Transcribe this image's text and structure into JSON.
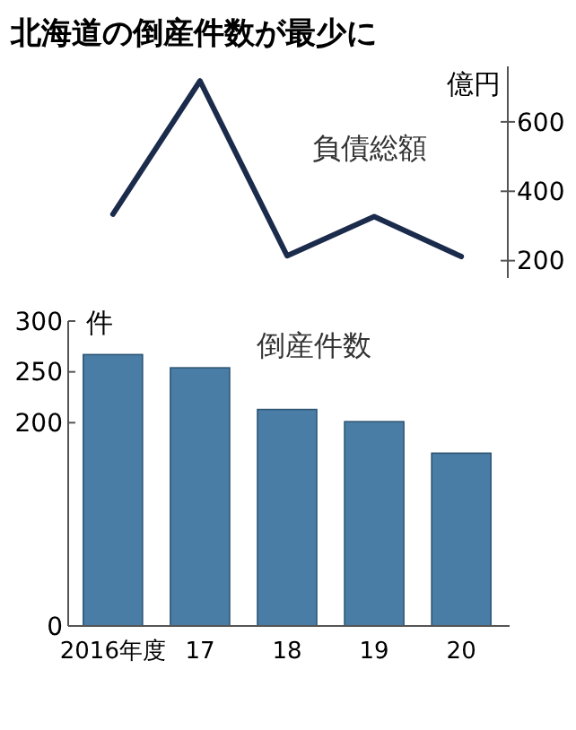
{
  "chart_data": [
    {
      "type": "line",
      "title": "北海道の倒産件数が最少に",
      "categories": [
        null,
        null,
        null,
        null,
        null
      ],
      "series": [
        {
          "name": "負債総額",
          "color": "#1b2b4b",
          "values": [
            334,
            718,
            214,
            327,
            212
          ]
        }
      ],
      "ylabel": "億円",
      "ylim": [
        150,
        760
      ],
      "yticks": [
        200,
        400,
        600
      ],
      "tick_labels": "y",
      "marker": "none",
      "line_style": "solid"
    },
    {
      "type": "bar",
      "categories": [
        "2016年度",
        "17",
        "18",
        "19",
        "20"
      ],
      "series": [
        {
          "name": "倒産件数",
          "color": "#4a7da6",
          "values": [
            267,
            254,
            213,
            201,
            170
          ]
        }
      ],
      "ylabel": "件",
      "ylim": [
        0,
        300
      ],
      "yticks": [
        0,
        200,
        250,
        300
      ]
    }
  ]
}
